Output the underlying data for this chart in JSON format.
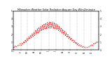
{
  "title": "Milwaukee Weather Solar Radiation Avg per Day W/m2/minute",
  "line_color": "#dd0000",
  "background_color": "#ffffff",
  "grid_color": "#888888",
  "ylim": [
    0,
    500
  ],
  "yticks_left": [
    0,
    100,
    200,
    300,
    400,
    500
  ],
  "ytick_labels_left": [
    "0",
    "1",
    "2",
    "3",
    "4",
    "5"
  ],
  "yticks_right": [
    0,
    100,
    200,
    300,
    400,
    500
  ],
  "ytick_labels_right": [
    "0",
    "1",
    "2",
    "3",
    "4",
    "5"
  ],
  "x_labels": [
    "J",
    "F",
    "M",
    "A",
    "M",
    "J",
    "J",
    "A",
    "S",
    "O",
    "N",
    "D",
    "J",
    "F"
  ],
  "num_days": 365,
  "values": [
    40,
    25,
    55,
    35,
    45,
    60,
    50,
    70,
    80,
    60,
    90,
    75,
    110,
    85,
    130,
    100,
    150,
    120,
    170,
    140,
    190,
    155,
    210,
    170,
    230,
    185,
    255,
    200,
    275,
    215,
    290,
    230,
    305,
    245,
    320,
    255,
    335,
    265,
    345,
    270,
    355,
    275,
    360,
    278,
    362,
    280,
    358,
    276,
    350,
    270,
    338,
    260,
    322,
    248,
    305,
    232,
    285,
    215,
    265,
    198,
    243,
    180,
    220,
    162,
    198,
    145,
    175,
    128,
    155,
    112,
    135,
    95,
    118,
    80,
    100,
    65,
    85,
    52,
    70,
    42,
    58,
    35,
    48,
    30,
    40,
    28,
    35,
    30,
    42,
    38,
    55,
    48,
    68,
    58,
    82,
    70,
    95,
    82,
    110,
    95
  ]
}
